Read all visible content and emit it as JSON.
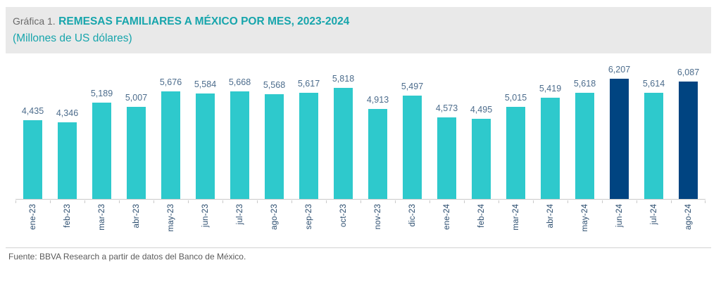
{
  "header": {
    "label": "Gráfica 1.",
    "title": "REMESAS FAMILIARES A MÉXICO POR MES, 2023-2024",
    "subtitle": "(Millones de US dólares)"
  },
  "chart_data": {
    "type": "bar",
    "title": "REMESAS FAMILIARES A MÉXICO POR MES, 2023-2024",
    "subtitle": "(Millones de US dólares)",
    "unit": "Millones de US dólares",
    "categories": [
      "ene-23",
      "feb-23",
      "mar-23",
      "abr-23",
      "may-23",
      "jun-23",
      "jul-23",
      "ago-23",
      "sep-23",
      "oct-23",
      "nov-23",
      "dic-23",
      "ene-24",
      "feb-24",
      "mar-24",
      "abr-24",
      "may-24",
      "jun-24",
      "jul-24",
      "ago-24"
    ],
    "values": [
      4435,
      4346,
      5189,
      5007,
      5676,
      5584,
      5668,
      5568,
      5617,
      5818,
      4913,
      5497,
      4573,
      4495,
      5015,
      5419,
      5618,
      6207,
      5614,
      6087
    ],
    "value_labels": [
      "4,435",
      "4,346",
      "5,189",
      "5,007",
      "5,676",
      "5,584",
      "5,668",
      "5,568",
      "5,617",
      "5,818",
      "4,913",
      "5,497",
      "4,573",
      "4,495",
      "5,015",
      "5,419",
      "5,618",
      "6,207",
      "5,614",
      "6,087"
    ],
    "highlighted_indices": [
      17,
      19
    ],
    "colors": {
      "bar": "#2ec9cc",
      "highlighted_bar": "#004481",
      "value_label": "#4c6c8c",
      "axis_label": "#2a4c6e",
      "axis_line": "#c9c9c9"
    },
    "ylim": [
      1100,
      6900
    ],
    "grid": false,
    "legend": false,
    "x_label_rotation_deg": -90
  },
  "footer": {
    "source": "Fuente: BBVA Research a partir de datos del Banco de México."
  }
}
